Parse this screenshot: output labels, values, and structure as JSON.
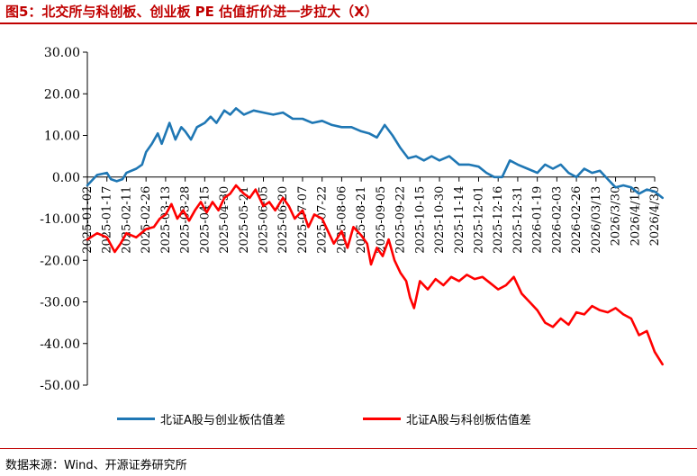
{
  "header": {
    "title": "图5：北交所与科创板、创业板 PE 估值折价进一步拉大（X）"
  },
  "footer": {
    "source": "数据来源：Wind、开源证券研究所"
  },
  "colors": {
    "series_1": "#1f77b4",
    "series_2": "#ff0000",
    "title_rule": "#c00000"
  },
  "chart_data": {
    "type": "line",
    "title": "",
    "xlabel": "",
    "ylabel": "",
    "ylim": [
      -50,
      30
    ],
    "yticks": [
      30,
      20,
      10,
      0,
      -10,
      -20,
      -30,
      -40,
      -50
    ],
    "ytick_labels": [
      "30.00",
      "20.00",
      "10.00",
      "0.00",
      "-10.00",
      "-20.00",
      "-30.00",
      "-40.00",
      "-50.00"
    ],
    "xtick_labels": [
      "2025-01-02",
      "2025-01-17",
      "2025-02-11",
      "2025-02-26",
      "2025-03-13",
      "2025-03-28",
      "2025-04-15",
      "2025-04-30",
      "2025-05-21",
      "2025-06-05",
      "2025-06-20",
      "2025-07-07",
      "2025-07-22",
      "2025-08-06",
      "2025-08-21",
      "2025-09-05",
      "2025-09-22",
      "2025-10-15",
      "2025-10-30",
      "2025-11-14",
      "2025-12-01",
      "2025-12-16",
      "2025-12-31",
      "2026-01-19",
      "2026-02-03",
      "2026-02-26",
      "2026/03/13",
      "2026/3/30",
      "2026/4/15",
      "2026/4/30"
    ],
    "legend_position": "bottom",
    "grid": false,
    "series": [
      {
        "name": "北证A股与创业板估值差",
        "values": [
          [
            0,
            -2
          ],
          [
            0.5,
            0.5
          ],
          [
            1,
            1
          ],
          [
            1.2,
            -0.5
          ],
          [
            1.5,
            -1
          ],
          [
            1.8,
            -0.5
          ],
          [
            2,
            1
          ],
          [
            2.5,
            2
          ],
          [
            2.8,
            3
          ],
          [
            3,
            6
          ],
          [
            3.3,
            8
          ],
          [
            3.6,
            10.5
          ],
          [
            3.8,
            8
          ],
          [
            4,
            10.5
          ],
          [
            4.2,
            13
          ],
          [
            4.5,
            9
          ],
          [
            4.8,
            12
          ],
          [
            5,
            11
          ],
          [
            5.3,
            9
          ],
          [
            5.6,
            12
          ],
          [
            6,
            13
          ],
          [
            6.3,
            14.5
          ],
          [
            6.6,
            13
          ],
          [
            7,
            16
          ],
          [
            7.3,
            15
          ],
          [
            7.6,
            16.5
          ],
          [
            8,
            15
          ],
          [
            8.5,
            16
          ],
          [
            9,
            15.5
          ],
          [
            9.5,
            15
          ],
          [
            10,
            15.5
          ],
          [
            10.5,
            14
          ],
          [
            11,
            14
          ],
          [
            11.5,
            13
          ],
          [
            12,
            13.5
          ],
          [
            12.5,
            12.5
          ],
          [
            13,
            12
          ],
          [
            13.5,
            12
          ],
          [
            14,
            11
          ],
          [
            14.4,
            10.5
          ],
          [
            14.8,
            9.5
          ],
          [
            15.2,
            12.5
          ],
          [
            15.6,
            10
          ],
          [
            16,
            7
          ],
          [
            16.4,
            4.5
          ],
          [
            16.8,
            5
          ],
          [
            17.2,
            4
          ],
          [
            17.6,
            5
          ],
          [
            18,
            4
          ],
          [
            18.5,
            5
          ],
          [
            19,
            3
          ],
          [
            19.5,
            3
          ],
          [
            20,
            2.5
          ],
          [
            20.4,
            1
          ],
          [
            20.8,
            0
          ],
          [
            21.2,
            0
          ],
          [
            21.6,
            4
          ],
          [
            22,
            3
          ],
          [
            22.5,
            2
          ],
          [
            23,
            1
          ],
          [
            23.4,
            3
          ],
          [
            23.8,
            2
          ],
          [
            24.2,
            3
          ],
          [
            24.6,
            1
          ],
          [
            25,
            0
          ],
          [
            25.4,
            2
          ],
          [
            25.8,
            1
          ],
          [
            26.2,
            1.5
          ],
          [
            26.6,
            -0.5
          ],
          [
            27,
            -2.5
          ],
          [
            27.4,
            -2
          ],
          [
            27.8,
            -2.5
          ],
          [
            28.2,
            -4
          ],
          [
            28.6,
            -3
          ],
          [
            29,
            -3.5
          ],
          [
            29.4,
            -5
          ]
        ]
      },
      {
        "name": "北证A股与科创板估值差",
        "values": [
          [
            0,
            -15
          ],
          [
            0.5,
            -13.5
          ],
          [
            1,
            -14.5
          ],
          [
            1.4,
            -18
          ],
          [
            1.7,
            -16
          ],
          [
            2,
            -13.5
          ],
          [
            2.5,
            -14.5
          ],
          [
            3,
            -12.5
          ],
          [
            3.4,
            -12
          ],
          [
            3.7,
            -10
          ],
          [
            4,
            -9
          ],
          [
            4.3,
            -6.5
          ],
          [
            4.6,
            -10
          ],
          [
            4.9,
            -8
          ],
          [
            5.2,
            -10.5
          ],
          [
            5.5,
            -8
          ],
          [
            5.8,
            -6
          ],
          [
            6.1,
            -8.5
          ],
          [
            6.4,
            -6
          ],
          [
            6.7,
            -8
          ],
          [
            7,
            -5
          ],
          [
            7.3,
            -4
          ],
          [
            7.6,
            -2
          ],
          [
            8,
            -4
          ],
          [
            8.3,
            -5
          ],
          [
            8.6,
            -3
          ],
          [
            9,
            -7
          ],
          [
            9.3,
            -6
          ],
          [
            9.6,
            -8
          ],
          [
            10,
            -5
          ],
          [
            10.3,
            -7
          ],
          [
            10.6,
            -10
          ],
          [
            11,
            -8
          ],
          [
            11.3,
            -12
          ],
          [
            11.6,
            -9
          ],
          [
            12,
            -10
          ],
          [
            12.3,
            -13
          ],
          [
            12.6,
            -16
          ],
          [
            13,
            -13
          ],
          [
            13.3,
            -17
          ],
          [
            13.6,
            -12
          ],
          [
            14,
            -14
          ],
          [
            14.3,
            -16
          ],
          [
            14.5,
            -21
          ],
          [
            14.8,
            -17
          ],
          [
            15.1,
            -19
          ],
          [
            15.4,
            -15
          ],
          [
            15.7,
            -20
          ],
          [
            16,
            -23
          ],
          [
            16.3,
            -25
          ],
          [
            16.5,
            -29
          ],
          [
            16.7,
            -31.5
          ],
          [
            17,
            -25
          ],
          [
            17.4,
            -27
          ],
          [
            17.8,
            -24.5
          ],
          [
            18.2,
            -26
          ],
          [
            18.6,
            -24
          ],
          [
            19,
            -25
          ],
          [
            19.4,
            -23.5
          ],
          [
            19.8,
            -24.5
          ],
          [
            20.2,
            -24
          ],
          [
            20.6,
            -25.5
          ],
          [
            21,
            -27
          ],
          [
            21.4,
            -26
          ],
          [
            21.8,
            -24
          ],
          [
            22.2,
            -28
          ],
          [
            22.6,
            -30
          ],
          [
            23,
            -32
          ],
          [
            23.4,
            -35
          ],
          [
            23.8,
            -36
          ],
          [
            24.2,
            -34
          ],
          [
            24.6,
            -35.5
          ],
          [
            25,
            -32.5
          ],
          [
            25.4,
            -33
          ],
          [
            25.8,
            -31
          ],
          [
            26.2,
            -32
          ],
          [
            26.6,
            -32.5
          ],
          [
            27,
            -31.5
          ],
          [
            27.4,
            -33
          ],
          [
            27.8,
            -34
          ],
          [
            28.2,
            -38
          ],
          [
            28.6,
            -37
          ],
          [
            29,
            -42
          ],
          [
            29.4,
            -45
          ]
        ]
      }
    ]
  }
}
